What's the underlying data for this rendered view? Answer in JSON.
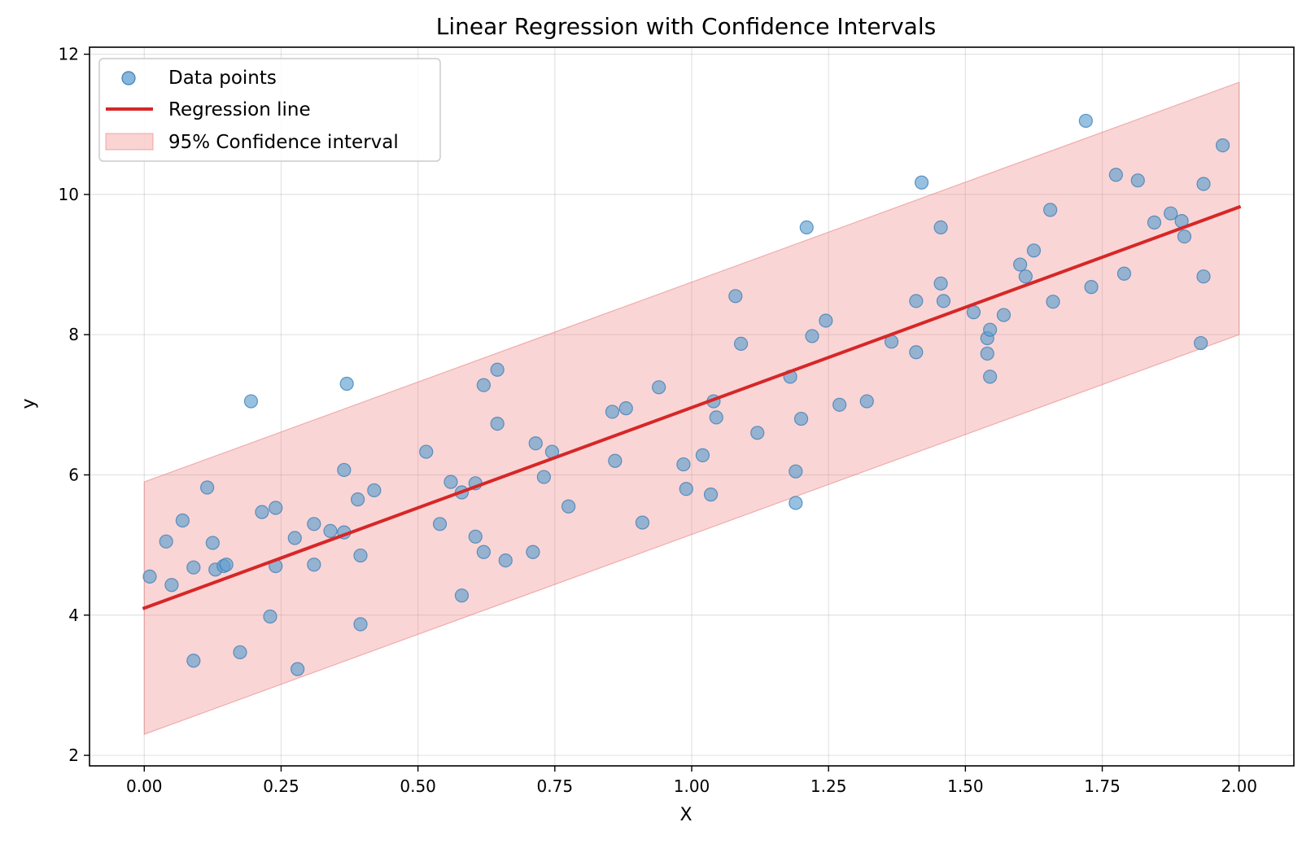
{
  "chart_data": {
    "type": "scatter",
    "title": "Linear Regression with Confidence Intervals",
    "xlabel": "X",
    "ylabel": "y",
    "xlim": [
      -0.1,
      2.1
    ],
    "ylim": [
      1.85,
      12.1
    ],
    "xticks": [
      0.0,
      0.25,
      0.5,
      0.75,
      1.0,
      1.25,
      1.5,
      1.75,
      2.0
    ],
    "xtick_labels": [
      "0.00",
      "0.25",
      "0.50",
      "0.75",
      "1.00",
      "1.25",
      "1.50",
      "1.75",
      "2.00"
    ],
    "yticks": [
      2,
      4,
      6,
      8,
      10,
      12
    ],
    "ytick_labels": [
      "2",
      "4",
      "6",
      "8",
      "10",
      "12"
    ],
    "grid": true,
    "legend_position": "top-left",
    "colors": {
      "points": "#5f9fd0",
      "regression": "#d62728",
      "band": "#f08080"
    },
    "series": [
      {
        "name": "Data points",
        "kind": "scatter",
        "points": [
          [
            0.01,
            4.55
          ],
          [
            0.04,
            5.05
          ],
          [
            0.05,
            4.43
          ],
          [
            0.07,
            5.35
          ],
          [
            0.09,
            3.35
          ],
          [
            0.09,
            4.68
          ],
          [
            0.115,
            5.82
          ],
          [
            0.125,
            5.03
          ],
          [
            0.13,
            4.65
          ],
          [
            0.145,
            4.7
          ],
          [
            0.15,
            4.72
          ],
          [
            0.175,
            3.47
          ],
          [
            0.195,
            7.05
          ],
          [
            0.215,
            5.47
          ],
          [
            0.23,
            3.98
          ],
          [
            0.24,
            5.53
          ],
          [
            0.24,
            4.7
          ],
          [
            0.275,
            5.1
          ],
          [
            0.28,
            3.23
          ],
          [
            0.31,
            5.3
          ],
          [
            0.31,
            4.72
          ],
          [
            0.34,
            5.2
          ],
          [
            0.365,
            5.18
          ],
          [
            0.365,
            6.07
          ],
          [
            0.37,
            7.3
          ],
          [
            0.39,
            5.65
          ],
          [
            0.395,
            3.87
          ],
          [
            0.395,
            4.85
          ],
          [
            0.42,
            5.78
          ],
          [
            0.515,
            6.33
          ],
          [
            0.54,
            5.3
          ],
          [
            0.56,
            5.9
          ],
          [
            0.58,
            4.28
          ],
          [
            0.58,
            5.75
          ],
          [
            0.605,
            5.88
          ],
          [
            0.605,
            5.12
          ],
          [
            0.62,
            7.28
          ],
          [
            0.62,
            4.9
          ],
          [
            0.645,
            7.5
          ],
          [
            0.645,
            6.73
          ],
          [
            0.66,
            4.78
          ],
          [
            0.71,
            4.9
          ],
          [
            0.715,
            6.45
          ],
          [
            0.73,
            5.97
          ],
          [
            0.745,
            6.33
          ],
          [
            0.775,
            5.55
          ],
          [
            0.855,
            6.9
          ],
          [
            0.86,
            6.2
          ],
          [
            0.88,
            6.95
          ],
          [
            0.91,
            5.32
          ],
          [
            0.94,
            7.25
          ],
          [
            0.985,
            6.15
          ],
          [
            0.99,
            5.8
          ],
          [
            1.02,
            6.28
          ],
          [
            1.035,
            5.72
          ],
          [
            1.04,
            7.05
          ],
          [
            1.045,
            6.82
          ],
          [
            1.08,
            8.55
          ],
          [
            1.09,
            7.87
          ],
          [
            1.12,
            6.6
          ],
          [
            1.18,
            7.4
          ],
          [
            1.19,
            6.05
          ],
          [
            1.19,
            5.6
          ],
          [
            1.2,
            6.8
          ],
          [
            1.21,
            9.53
          ],
          [
            1.22,
            7.98
          ],
          [
            1.245,
            8.2
          ],
          [
            1.27,
            7.0
          ],
          [
            1.32,
            7.05
          ],
          [
            1.365,
            7.9
          ],
          [
            1.41,
            8.48
          ],
          [
            1.41,
            7.75
          ],
          [
            1.42,
            10.17
          ],
          [
            1.455,
            8.73
          ],
          [
            1.455,
            9.53
          ],
          [
            1.46,
            8.48
          ],
          [
            1.515,
            8.32
          ],
          [
            1.54,
            7.95
          ],
          [
            1.54,
            7.73
          ],
          [
            1.545,
            7.4
          ],
          [
            1.545,
            8.07
          ],
          [
            1.57,
            8.28
          ],
          [
            1.6,
            9.0
          ],
          [
            1.61,
            8.83
          ],
          [
            1.625,
            9.2
          ],
          [
            1.655,
            9.78
          ],
          [
            1.66,
            8.47
          ],
          [
            1.72,
            11.05
          ],
          [
            1.73,
            8.68
          ],
          [
            1.775,
            10.28
          ],
          [
            1.79,
            8.87
          ],
          [
            1.815,
            10.2
          ],
          [
            1.845,
            9.6
          ],
          [
            1.875,
            9.73
          ],
          [
            1.895,
            9.62
          ],
          [
            1.9,
            9.4
          ],
          [
            1.93,
            7.88
          ],
          [
            1.935,
            8.83
          ],
          [
            1.935,
            10.15
          ],
          [
            1.97,
            10.7
          ]
        ]
      },
      {
        "name": "Regression line",
        "kind": "line",
        "x": [
          0.0,
          2.0
        ],
        "y": [
          4.1,
          9.82
        ]
      },
      {
        "name": "95% Confidence interval",
        "kind": "band",
        "x": [
          0.0,
          2.0
        ],
        "lower": [
          2.3,
          8.0
        ],
        "upper": [
          5.9,
          11.6
        ]
      }
    ]
  }
}
